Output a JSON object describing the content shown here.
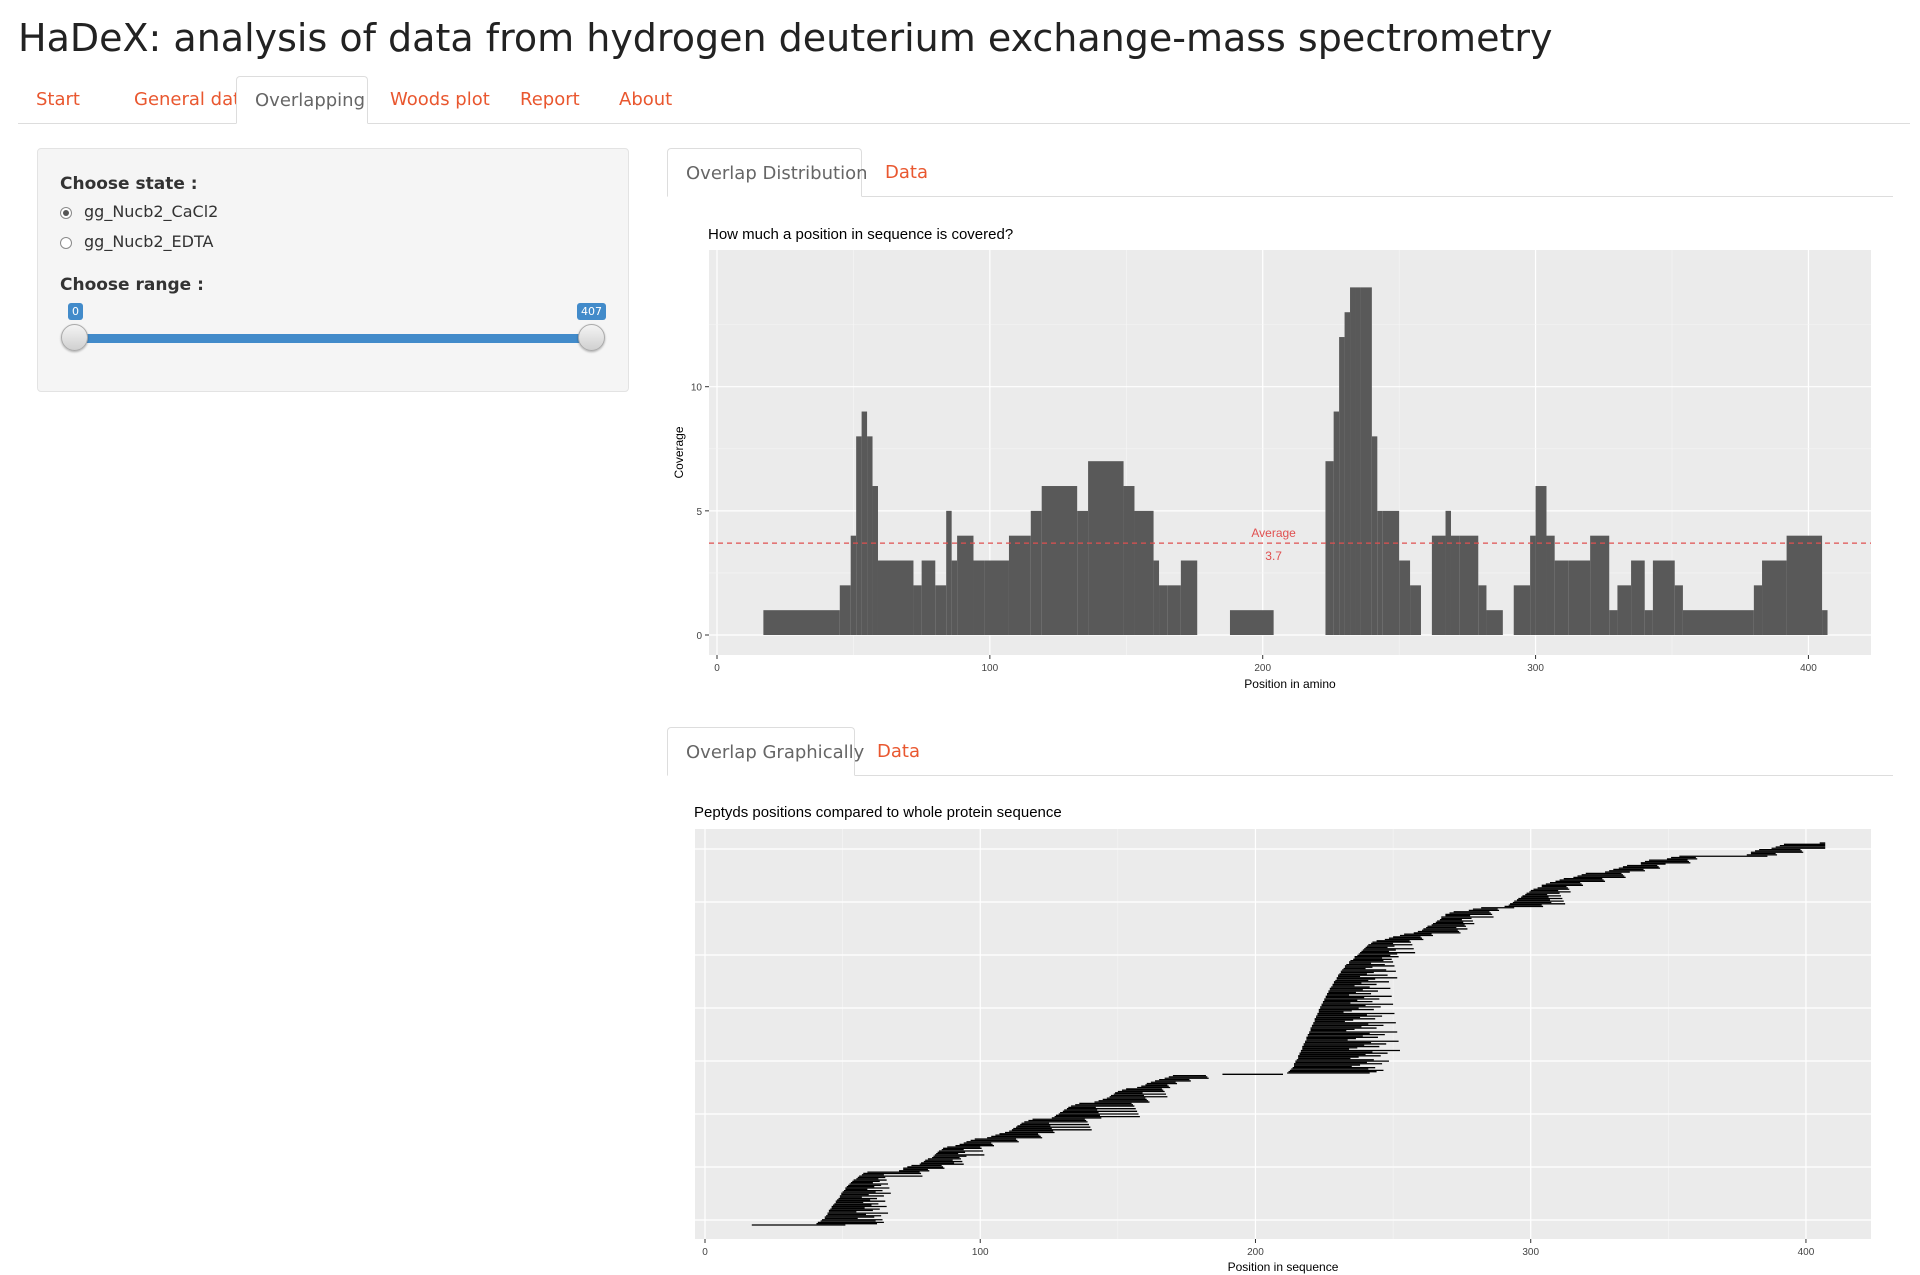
{
  "app": {
    "title": "HaDeX: analysis of data from hydrogen deuterium exchange-mass spectrometry"
  },
  "nav": {
    "tabs": [
      {
        "label": "Start",
        "active": false
      },
      {
        "label": "General data",
        "active": false
      },
      {
        "label": "Overlapping",
        "active": true
      },
      {
        "label": "Woods plot",
        "active": false
      },
      {
        "label": "Report",
        "active": false
      },
      {
        "label": "About",
        "active": false
      }
    ]
  },
  "sidebar": {
    "state_label": "Choose state :",
    "states": [
      {
        "label": "gg_Nucb2_CaCl2",
        "checked": true
      },
      {
        "label": "gg_Nucb2_EDTA",
        "checked": false
      }
    ],
    "range_label": "Choose range :",
    "range": {
      "min": 0,
      "max": 407,
      "from_label": "0",
      "to_label": "407"
    }
  },
  "distribution_section": {
    "tabs": [
      {
        "label": "Overlap Distribution",
        "active": true
      },
      {
        "label": "Data",
        "active": false
      }
    ]
  },
  "graphical_section": {
    "tabs": [
      {
        "label": "Overlap Graphically",
        "active": true
      },
      {
        "label": "Data",
        "active": false
      }
    ]
  },
  "colors": {
    "accent": "#e9572f",
    "slider": "#428bca",
    "bar": "#595959",
    "panel": "#ebebeb",
    "average_line": "#e05050"
  },
  "chart_data": [
    {
      "type": "bar",
      "title": "How much a position in sequence is covered?",
      "xlabel": "Position in amino",
      "ylabel": "Coverage",
      "xlim": [
        0,
        420
      ],
      "ylim": [
        0,
        14.7
      ],
      "xticks": [
        0,
        100,
        200,
        300,
        400
      ],
      "yticks": [
        0,
        5,
        10
      ],
      "grid": true,
      "average": {
        "value": 3.7,
        "label": "Average",
        "value_label": "3.7"
      },
      "segments": [
        [
          17,
          45,
          1
        ],
        [
          45,
          49,
          2
        ],
        [
          49,
          51,
          4
        ],
        [
          51,
          53,
          8
        ],
        [
          53,
          55,
          9
        ],
        [
          55,
          57,
          8
        ],
        [
          57,
          59,
          6
        ],
        [
          59,
          72,
          3
        ],
        [
          72,
          75,
          2
        ],
        [
          75,
          80,
          3
        ],
        [
          80,
          84,
          2
        ],
        [
          84,
          86,
          5
        ],
        [
          86,
          88,
          3
        ],
        [
          88,
          94,
          4
        ],
        [
          94,
          98,
          3
        ],
        [
          98,
          107,
          3
        ],
        [
          107,
          115,
          4
        ],
        [
          115,
          119,
          5
        ],
        [
          119,
          132,
          6
        ],
        [
          132,
          136,
          5
        ],
        [
          136,
          149,
          7
        ],
        [
          149,
          153,
          6
        ],
        [
          153,
          160,
          5
        ],
        [
          160,
          162,
          3
        ],
        [
          162,
          165,
          2
        ],
        [
          165,
          170,
          2
        ],
        [
          170,
          176,
          3
        ],
        [
          188,
          204,
          1
        ],
        [
          223,
          226,
          7
        ],
        [
          226,
          228,
          9
        ],
        [
          228,
          230,
          12
        ],
        [
          230,
          232,
          13
        ],
        [
          232,
          234,
          14
        ],
        [
          234,
          236,
          14
        ],
        [
          236,
          240,
          14
        ],
        [
          240,
          242,
          8
        ],
        [
          242,
          244,
          5
        ],
        [
          244,
          250,
          5
        ],
        [
          250,
          254,
          3
        ],
        [
          254,
          258,
          2
        ],
        [
          262,
          267,
          4
        ],
        [
          267,
          269,
          5
        ],
        [
          269,
          272,
          4
        ],
        [
          272,
          279,
          4
        ],
        [
          279,
          282,
          2
        ],
        [
          282,
          288,
          1
        ],
        [
          292,
          298,
          2
        ],
        [
          298,
          300,
          4
        ],
        [
          300,
          304,
          6
        ],
        [
          304,
          307,
          4
        ],
        [
          307,
          312,
          3
        ],
        [
          312,
          320,
          3
        ],
        [
          320,
          327,
          4
        ],
        [
          327,
          330,
          1
        ],
        [
          330,
          335,
          2
        ],
        [
          335,
          340,
          3
        ],
        [
          340,
          343,
          1
        ],
        [
          343,
          351,
          3
        ],
        [
          351,
          354,
          2
        ],
        [
          354,
          380,
          1
        ],
        [
          380,
          383,
          2
        ],
        [
          383,
          392,
          3
        ],
        [
          392,
          405,
          4
        ],
        [
          405,
          407,
          1
        ]
      ]
    },
    {
      "type": "scatter",
      "title": "Peptyds positions compared to whole protein sequence",
      "xlabel": "Position in sequence",
      "xlim": [
        0,
        420
      ],
      "xticks": [
        0,
        100,
        200,
        300,
        400
      ],
      "grid": true
    }
  ]
}
